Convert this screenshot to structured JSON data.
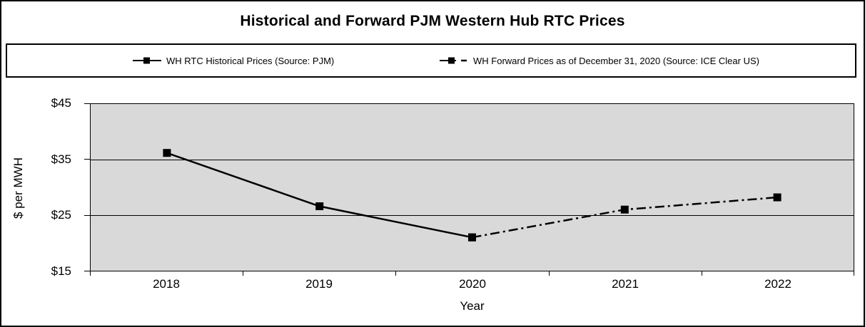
{
  "chart_data": {
    "type": "line",
    "title": "Historical and Forward PJM Western Hub RTC Prices",
    "xlabel": "Year",
    "ylabel": "$ per MWH",
    "categories": [
      "2018",
      "2019",
      "2020",
      "2021",
      "2022"
    ],
    "ylim": [
      15,
      45
    ],
    "ytick_step": 10,
    "ytick_labels_top_to_bottom": [
      "$45",
      "$35",
      "$25",
      "$15"
    ],
    "grid": "horizontal",
    "legend_position": "top-boxed",
    "plot_background": "#d9d9d9",
    "line_color": "#000000",
    "series": [
      {
        "name": "WH RTC Historical Prices (Source: PJM)",
        "style": "solid",
        "marker": "square",
        "x": [
          "2018",
          "2019",
          "2020"
        ],
        "values": [
          36.2,
          26.6,
          21.0
        ]
      },
      {
        "name": "WH Forward Prices as of December 31, 2020 (Source: ICE Clear US)",
        "style": "dash-dot",
        "marker": "square",
        "x": [
          "2020",
          "2021",
          "2022"
        ],
        "values": [
          21.0,
          26.0,
          28.2
        ]
      }
    ]
  },
  "legend": {
    "entries": [
      {
        "label": "WH RTC Historical Prices (Source: PJM)"
      },
      {
        "label": "WH Forward Prices as of December 31, 2020 (Source: ICE Clear US)"
      }
    ]
  }
}
